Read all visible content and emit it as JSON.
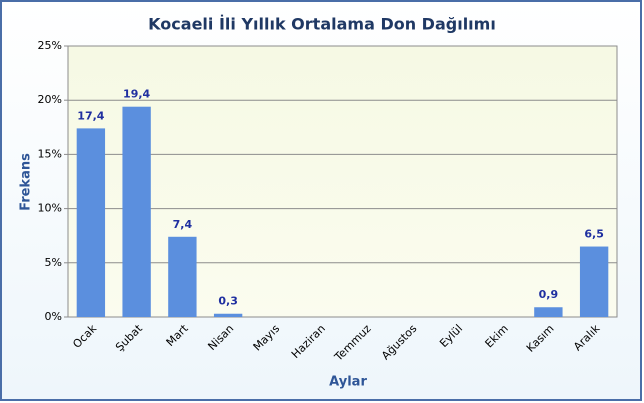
{
  "chart_data": {
    "type": "bar",
    "title": "Kocaeli İli Yıllık Ortalama Don Dağılımı",
    "x_label": "Aylar",
    "y_label": "Frekans",
    "categories": [
      "Ocak",
      "Şubat",
      "Mart",
      "Nisan",
      "Mayıs",
      "Haziran",
      "Temmuz",
      "Ağustos",
      "Eylül",
      "Ekim",
      "Kasım",
      "Aralık"
    ],
    "values": [
      17.4,
      19.4,
      7.4,
      0.3,
      null,
      null,
      null,
      null,
      null,
      null,
      0.9,
      6.5
    ],
    "value_labels": [
      "17,4",
      "19,4",
      "7,4",
      "0,3",
      null,
      null,
      null,
      null,
      null,
      null,
      "0,9",
      "6,5"
    ],
    "color": "#5b8fde",
    "ylim": [
      0,
      25
    ],
    "yticks": [
      {
        "value": 0,
        "label": "0%"
      },
      {
        "value": 5,
        "label": "5%"
      },
      {
        "value": 10,
        "label": "10%"
      },
      {
        "value": 15,
        "label": "15%"
      },
      {
        "value": 20,
        "label": "20%"
      },
      {
        "value": 25,
        "label": "25%"
      }
    ],
    "grid": true
  }
}
